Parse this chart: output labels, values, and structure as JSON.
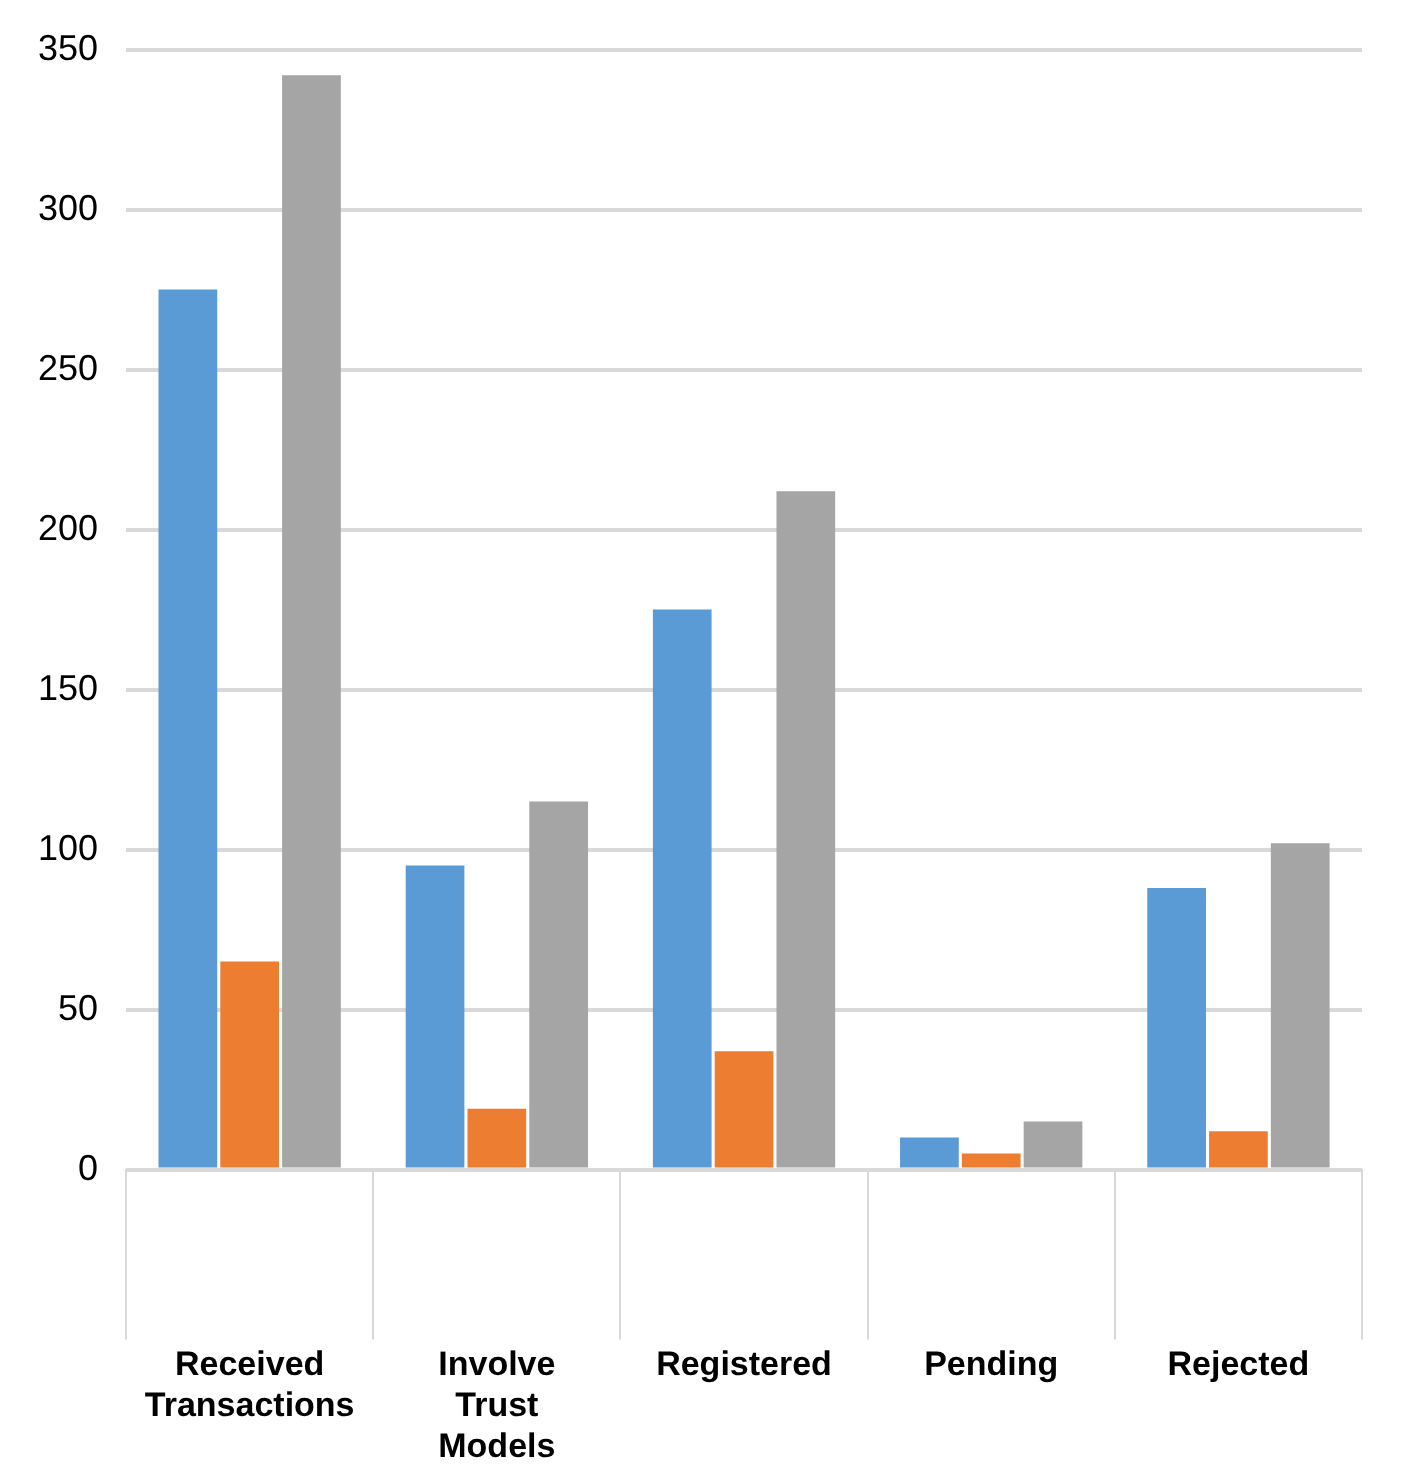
{
  "chart_data": {
    "type": "bar",
    "categories": [
      "Received Transactions",
      "Involve Trust Models",
      "Registered",
      "Pending",
      "Rejected"
    ],
    "series": [
      {
        "color": "#5b9bd5",
        "values": [
          275,
          95,
          175,
          10,
          88
        ]
      },
      {
        "color": "#ed7d31",
        "values": [
          65,
          19,
          37,
          5,
          12
        ]
      },
      {
        "color": "#a5a5a5",
        "values": [
          342,
          115,
          212,
          15,
          102
        ]
      }
    ],
    "ylim": [
      0,
      350
    ],
    "yticks": [
      0,
      50,
      100,
      150,
      200,
      250,
      300,
      350
    ],
    "grid": "y",
    "legend": false
  }
}
